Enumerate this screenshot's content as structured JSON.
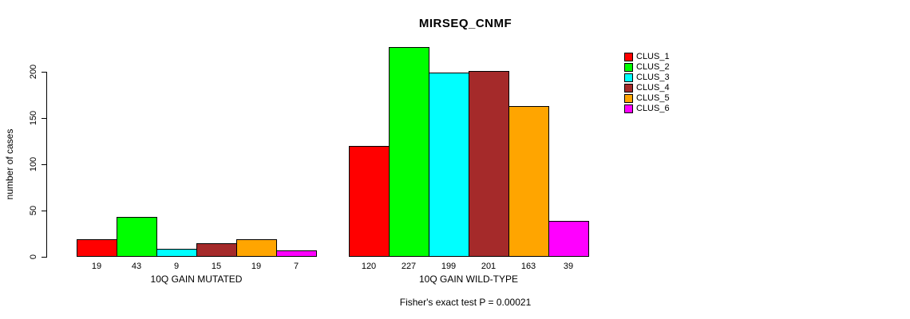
{
  "footer": {
    "text": "Fisher's exact test P = 0.00021"
  },
  "chart_data": {
    "type": "bar",
    "title": "MIRSEQ_CNMF",
    "xlabel": "",
    "ylabel": "number of cases",
    "ylim": [
      0,
      230
    ],
    "yticks": [
      0,
      50,
      100,
      150,
      200
    ],
    "grid": false,
    "legend_position": "right",
    "bar_value_labels": true,
    "categories": [
      "10Q GAIN MUTATED",
      "10Q GAIN WILD-TYPE"
    ],
    "series": [
      {
        "name": "CLUS_1",
        "color": "#FF0000",
        "values": [
          19,
          120
        ]
      },
      {
        "name": "CLUS_2",
        "color": "#00FF00",
        "values": [
          43,
          227
        ]
      },
      {
        "name": "CLUS_3",
        "color": "#00FFFF",
        "values": [
          9,
          199
        ]
      },
      {
        "name": "CLUS_4",
        "color": "#A52A2A",
        "values": [
          15,
          201
        ]
      },
      {
        "name": "CLUS_5",
        "color": "#FFA500",
        "values": [
          19,
          163
        ]
      },
      {
        "name": "CLUS_6",
        "color": "#FF00FF",
        "values": [
          7,
          39
        ]
      }
    ]
  }
}
